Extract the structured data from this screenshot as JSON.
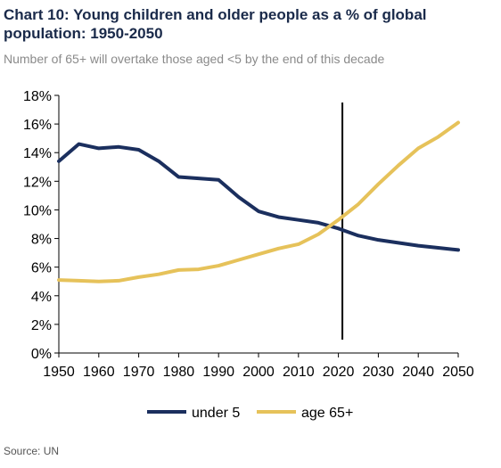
{
  "chart_data": {
    "type": "line",
    "title": "Chart 10: Young children and older people as a % of global population: 1950-2050",
    "subtitle": "Number of 65+ will overtake those aged <5 by the end of this decade",
    "xlabel": "",
    "ylabel": "",
    "xlim": [
      1950,
      2050
    ],
    "ylim": [
      0,
      18
    ],
    "x_ticks": [
      1950,
      1960,
      1970,
      1980,
      1990,
      2000,
      2010,
      2020,
      2030,
      2040,
      2050
    ],
    "y_ticks": [
      0,
      2,
      4,
      6,
      8,
      10,
      12,
      14,
      16,
      18
    ],
    "y_tick_format": "%",
    "grid": false,
    "legend_position": "bottom",
    "vertical_marker_x": 2021,
    "series": [
      {
        "name": "under 5",
        "color": "#1b2f5e",
        "x": [
          1950,
          1955,
          1960,
          1965,
          1970,
          1975,
          1980,
          1985,
          1990,
          1995,
          2000,
          2005,
          2010,
          2015,
          2020,
          2025,
          2030,
          2035,
          2040,
          2045,
          2050
        ],
        "values": [
          13.4,
          14.6,
          14.3,
          14.4,
          14.2,
          13.4,
          12.3,
          12.2,
          12.1,
          10.9,
          9.9,
          9.5,
          9.3,
          9.1,
          8.7,
          8.2,
          7.9,
          7.7,
          7.5,
          7.35,
          7.2
        ]
      },
      {
        "name": "age 65+",
        "color": "#e6c25a",
        "x": [
          1950,
          1955,
          1960,
          1965,
          1970,
          1975,
          1980,
          1985,
          1990,
          1995,
          2000,
          2005,
          2010,
          2015,
          2020,
          2025,
          2030,
          2035,
          2040,
          2045,
          2050
        ],
        "values": [
          5.1,
          5.05,
          5.0,
          5.05,
          5.3,
          5.5,
          5.8,
          5.85,
          6.1,
          6.5,
          6.9,
          7.3,
          7.6,
          8.3,
          9.3,
          10.4,
          11.8,
          13.1,
          14.3,
          15.1,
          16.1
        ]
      }
    ]
  },
  "source": "Source: UN"
}
